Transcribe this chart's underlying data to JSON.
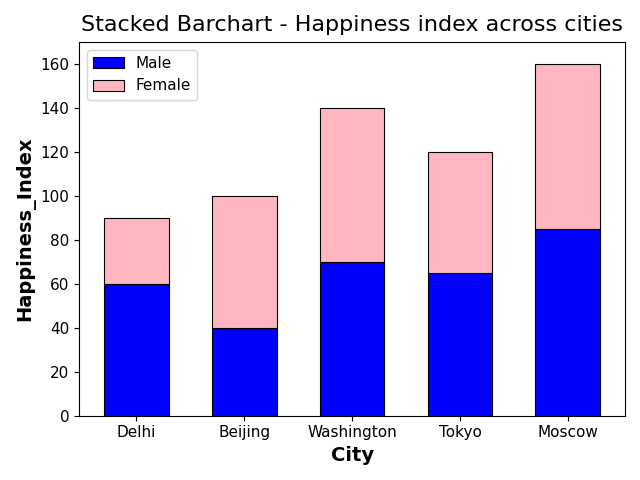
{
  "title": "Stacked Barchart - Happiness index across cities",
  "xlabel": "City",
  "ylabel": "Happiness_Index",
  "cities": [
    "Delhi",
    "Beijing",
    "Washington",
    "Tokyo",
    "Moscow"
  ],
  "male_values": [
    60,
    40,
    70,
    65,
    85
  ],
  "female_values": [
    30,
    60,
    70,
    55,
    75
  ],
  "male_color": "blue",
  "female_color": "lightpink",
  "male_label": "Male",
  "female_label": "Female",
  "ylim": [
    0,
    170
  ],
  "title_fontsize": 16,
  "axis_label_fontsize": 14,
  "tick_fontsize": 11,
  "legend_fontsize": 11,
  "bar_edgecolor": "black",
  "bar_linewidth": 0.8,
  "bar_width": 0.6,
  "figsize": [
    6.4,
    4.8
  ],
  "dpi": 100
}
